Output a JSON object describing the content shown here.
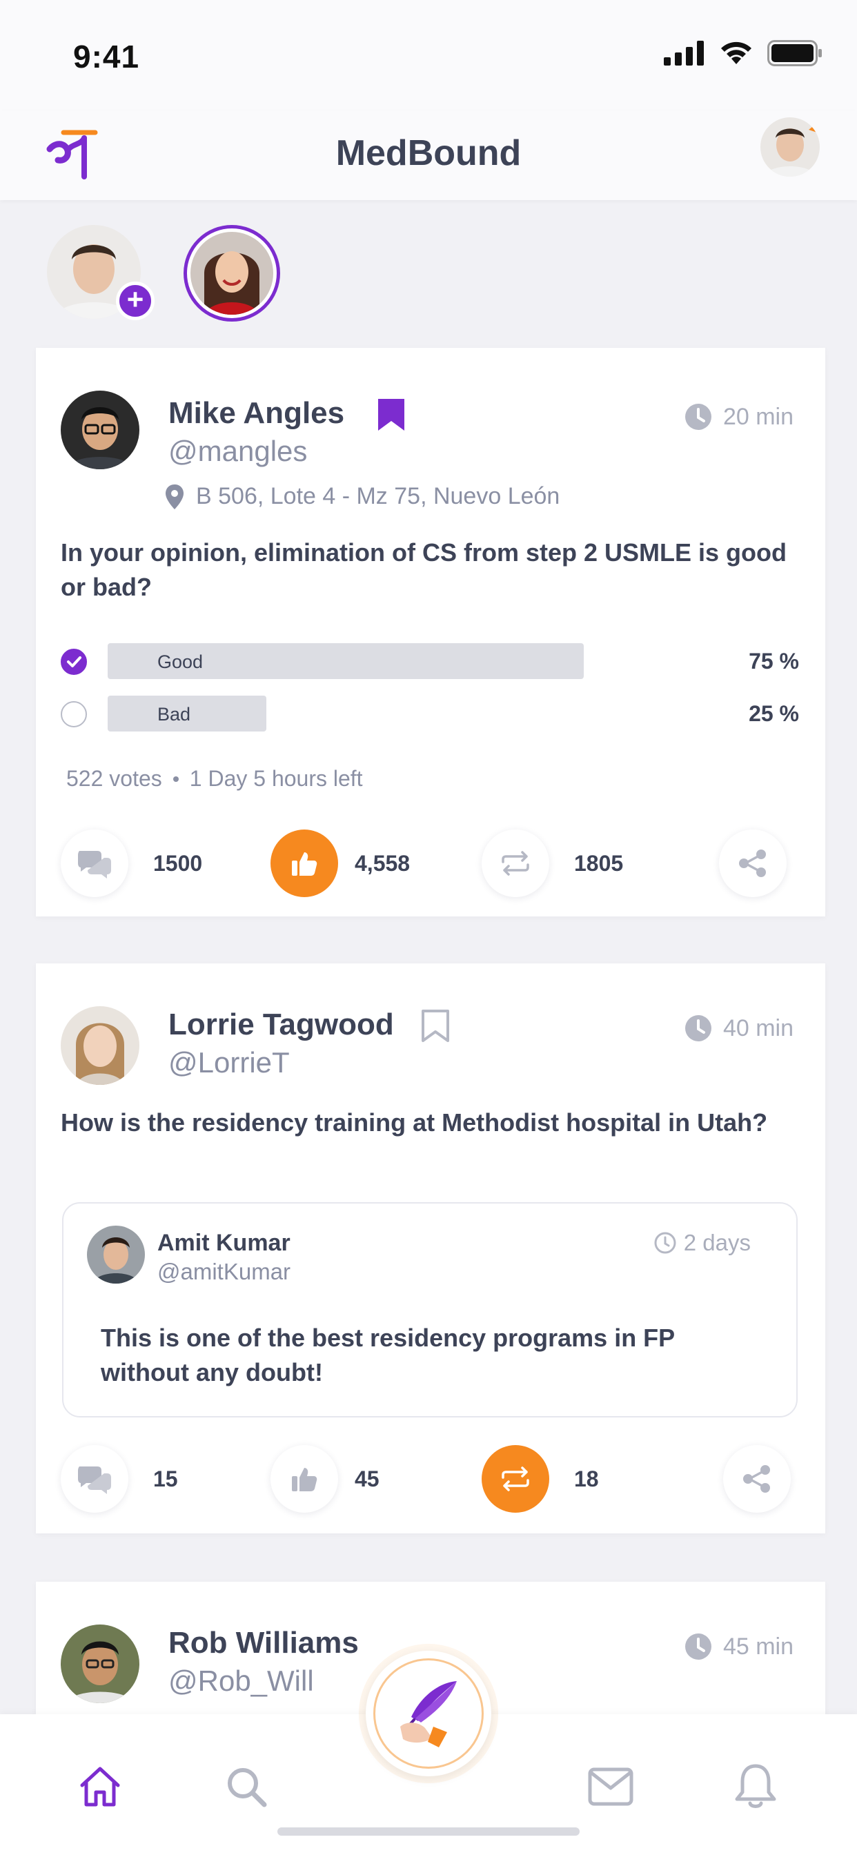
{
  "status_bar": {
    "time": "9:41"
  },
  "header": {
    "title": "MedBound",
    "logo_glyph": "मे"
  },
  "posts": [
    {
      "author": "Mike Angles",
      "handle": "@mangles",
      "time": "20 min",
      "bookmarked": true,
      "location": "B 506, Lote 4 - Mz 75, Nuevo León",
      "question": "In your opinion, elimination of CS from step 2 USMLE is good or bad?",
      "poll": {
        "options": [
          {
            "label": "Good",
            "percent": "75 %",
            "fraction": 0.75,
            "selected": true
          },
          {
            "label": "Bad",
            "percent": "25 %",
            "fraction": 0.25,
            "selected": false
          }
        ],
        "votes": "522 votes",
        "time_left": "1 Day 5 hours left"
      },
      "actions": {
        "comments": "1500",
        "likes": "4,558",
        "reposts": "1805",
        "liked": true
      }
    },
    {
      "author": "Lorrie Tagwood",
      "handle": "@LorrieT",
      "time": "40 min",
      "bookmarked": false,
      "question": "How is the residency training at Methodist hospital in Utah?",
      "reply": {
        "author": "Amit Kumar",
        "handle": "@amitKumar",
        "time": "2 days",
        "text": "This is one of the best residency programs in FP without any doubt!"
      },
      "actions": {
        "comments": "15",
        "likes": "45",
        "reposts": "18",
        "reposted": true
      }
    },
    {
      "author": "Rob Williams",
      "handle": "@Rob_Will",
      "time": "45 min"
    }
  ],
  "icons": {
    "nav": [
      "home-icon",
      "search-icon",
      "compose-quill-icon",
      "mail-icon",
      "bell-icon"
    ],
    "actions": [
      "comments-icon",
      "like-icon",
      "repost-icon",
      "share-icon"
    ]
  },
  "colors": {
    "accent_purple": "#7c2ccf",
    "accent_orange": "#f6891f",
    "text_primary": "#3d4357",
    "text_secondary": "#8a8fa3"
  }
}
